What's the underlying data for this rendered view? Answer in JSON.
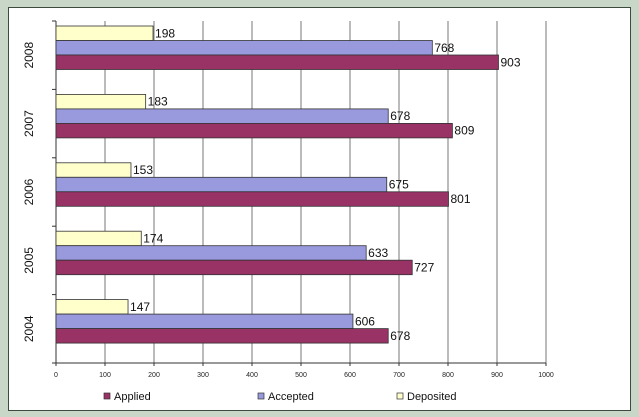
{
  "chart_data": {
    "type": "bar",
    "orientation": "horizontal",
    "categories": [
      "2008",
      "2007",
      "2006",
      "2005",
      "2004"
    ],
    "series": [
      {
        "name": "Deposited",
        "values": [
          198,
          183,
          153,
          174,
          147
        ],
        "color": "#ffffcc"
      },
      {
        "name": "Accepted",
        "values": [
          768,
          678,
          675,
          633,
          606
        ],
        "color": "#9999dd"
      },
      {
        "name": "Applied",
        "values": [
          903,
          809,
          801,
          727,
          678
        ],
        "color": "#993366"
      }
    ],
    "legend_order": [
      "Applied",
      "Accepted",
      "Deposited"
    ],
    "xlim": [
      0,
      1000
    ],
    "xticks": [
      0,
      100,
      200,
      300,
      400,
      500,
      600,
      700,
      800,
      900,
      1000
    ],
    "grid": "vertical",
    "legend": "bottom",
    "title": "",
    "xlabel": "",
    "ylabel": ""
  }
}
